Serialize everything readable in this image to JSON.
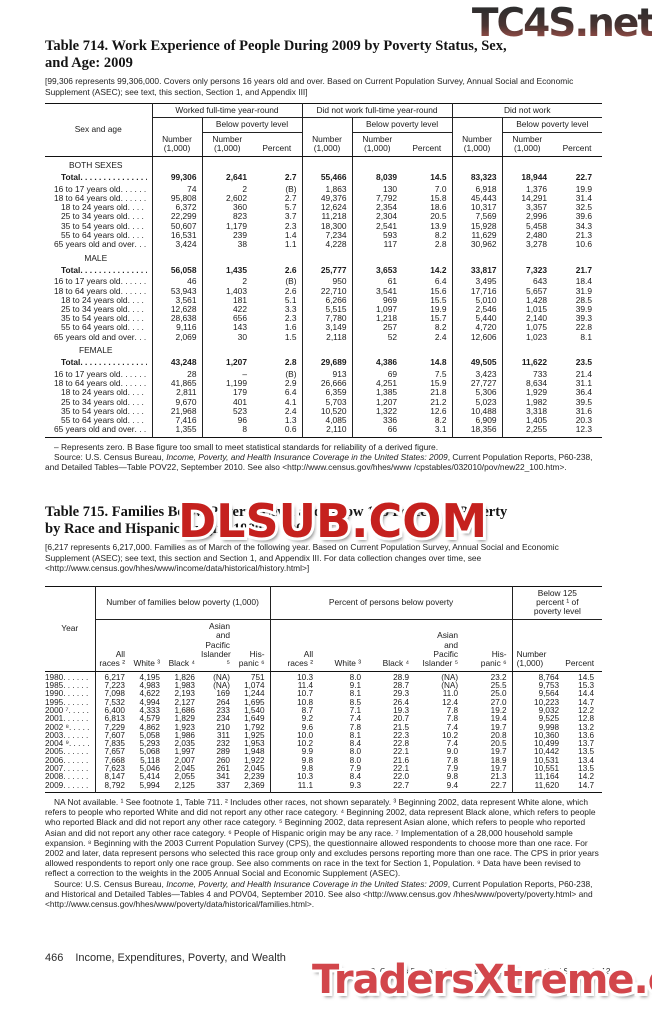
{
  "watermarks": {
    "top": "TC4S.net",
    "middle": "DLSUB.COM",
    "bottom": "TradersXtreme.com"
  },
  "table714": {
    "title": "Table 714. Work Experience of People During 2009 by Poverty Status, Sex,\nand Age: 2009",
    "bracket_note": "[99,306 represents 99,306,000. Covers only persons 16 years old and over. Based on Current Population Survey, Annual Social and Economic Supplement (ASEC); see text, this section, Section 1, and Appendix III]",
    "stub_header": "Sex and age",
    "groups": [
      "Worked full-time year-round",
      "Did not work full-time year-round",
      "Did not work"
    ],
    "below_poverty_label": "Below poverty level",
    "number_header": "Number\n(1,000)",
    "percent_header": "Percent",
    "sections": [
      {
        "label": "BOTH SEXES",
        "rows": [
          {
            "label": "Total",
            "bold": true,
            "indent": 0,
            "values": [
              "99,306",
              "2,641",
              "2.7",
              "55,466",
              "8,039",
              "14.5",
              "83,323",
              "18,944",
              "22.7"
            ]
          },
          {
            "label": "16 to 17 years old",
            "indent": 1,
            "values": [
              "74",
              "2",
              "(B)",
              "1,863",
              "130",
              "7.0",
              "6,918",
              "1,376",
              "19.9"
            ]
          },
          {
            "label": "18 to 64 years old",
            "indent": 1,
            "values": [
              "95,808",
              "2,602",
              "2.7",
              "49,376",
              "7,792",
              "15.8",
              "45,443",
              "14,291",
              "31.4"
            ]
          },
          {
            "label": "18 to 24 years old",
            "indent": 2,
            "values": [
              "6,372",
              "360",
              "5.7",
              "12,624",
              "2,354",
              "18.6",
              "10,317",
              "3,357",
              "32.5"
            ]
          },
          {
            "label": "25 to 34 years old",
            "indent": 2,
            "values": [
              "22,299",
              "823",
              "3.7",
              "11,218",
              "2,304",
              "20.5",
              "7,569",
              "2,996",
              "39.6"
            ]
          },
          {
            "label": "35 to 54 years old",
            "indent": 2,
            "values": [
              "50,607",
              "1,179",
              "2.3",
              "18,300",
              "2,541",
              "13.9",
              "15,928",
              "5,458",
              "34.3"
            ]
          },
          {
            "label": "55 to 64 years old",
            "indent": 2,
            "values": [
              "16,531",
              "239",
              "1.4",
              "7,234",
              "593",
              "8.2",
              "11,629",
              "2,480",
              "21.3"
            ]
          },
          {
            "label": "65 years old and over",
            "indent": 1,
            "values": [
              "3,424",
              "38",
              "1.1",
              "4,228",
              "117",
              "2.8",
              "30,962",
              "3,278",
              "10.6"
            ]
          }
        ]
      },
      {
        "label": "MALE",
        "rows": [
          {
            "label": "Total",
            "bold": true,
            "indent": 0,
            "values": [
              "56,058",
              "1,435",
              "2.6",
              "25,777",
              "3,653",
              "14.2",
              "33,817",
              "7,323",
              "21.7"
            ]
          },
          {
            "label": "16 to 17 years old",
            "indent": 1,
            "values": [
              "46",
              "2",
              "(B)",
              "950",
              "61",
              "6.4",
              "3,495",
              "643",
              "18.4"
            ]
          },
          {
            "label": "18 to 64 years old",
            "indent": 1,
            "values": [
              "53,943",
              "1,403",
              "2.6",
              "22,710",
              "3,541",
              "15.6",
              "17,716",
              "5,657",
              "31.9"
            ]
          },
          {
            "label": "18 to 24 years old",
            "indent": 2,
            "values": [
              "3,561",
              "181",
              "5.1",
              "6,266",
              "969",
              "15.5",
              "5,010",
              "1,428",
              "28.5"
            ]
          },
          {
            "label": "25 to 34 years old",
            "indent": 2,
            "values": [
              "12,628",
              "422",
              "3.3",
              "5,515",
              "1,097",
              "19.9",
              "2,546",
              "1,015",
              "39.9"
            ]
          },
          {
            "label": "35 to 54 years old",
            "indent": 2,
            "values": [
              "28,638",
              "656",
              "2.3",
              "7,780",
              "1,218",
              "15.7",
              "5,440",
              "2,140",
              "39.3"
            ]
          },
          {
            "label": "55 to 64 years old",
            "indent": 2,
            "values": [
              "9,116",
              "143",
              "1.6",
              "3,149",
              "257",
              "8.2",
              "4,720",
              "1,075",
              "22.8"
            ]
          },
          {
            "label": "65 years old and over",
            "indent": 1,
            "values": [
              "2,069",
              "30",
              "1.5",
              "2,118",
              "52",
              "2.4",
              "12,606",
              "1,023",
              "8.1"
            ]
          }
        ]
      },
      {
        "label": "FEMALE",
        "rows": [
          {
            "label": "Total",
            "bold": true,
            "indent": 0,
            "values": [
              "43,248",
              "1,207",
              "2.8",
              "29,689",
              "4,386",
              "14.8",
              "49,505",
              "11,622",
              "23.5"
            ]
          },
          {
            "label": "16 to 17 years old",
            "indent": 1,
            "values": [
              "28",
              "–",
              "(B)",
              "913",
              "69",
              "7.5",
              "3,423",
              "733",
              "21.4"
            ]
          },
          {
            "label": "18 to 64 years old",
            "indent": 1,
            "values": [
              "41,865",
              "1,199",
              "2.9",
              "26,666",
              "4,251",
              "15.9",
              "27,727",
              "8,634",
              "31.1"
            ]
          },
          {
            "label": "18 to 24 years old",
            "indent": 2,
            "values": [
              "2,811",
              "179",
              "6.4",
              "6,359",
              "1,385",
              "21.8",
              "5,306",
              "1,929",
              "36.4"
            ]
          },
          {
            "label": "25 to 34 years old",
            "indent": 2,
            "values": [
              "9,670",
              "401",
              "4.1",
              "5,703",
              "1,207",
              "21.2",
              "5,023",
              "1,982",
              "39.5"
            ]
          },
          {
            "label": "35 to 54 years old",
            "indent": 2,
            "values": [
              "21,968",
              "523",
              "2.4",
              "10,520",
              "1,322",
              "12.6",
              "10,488",
              "3,318",
              "31.6"
            ]
          },
          {
            "label": "55 to 64 years old",
            "indent": 2,
            "values": [
              "7,416",
              "96",
              "1.3",
              "4,085",
              "336",
              "8.2",
              "6,909",
              "1,405",
              "20.3"
            ]
          },
          {
            "label": "65 years old and over",
            "indent": 1,
            "values": [
              "1,355",
              "8",
              "0.6",
              "2,110",
              "66",
              "3.1",
              "18,356",
              "2,255",
              "12.3"
            ]
          }
        ]
      }
    ],
    "footnote": "– Represents zero. B Base figure too small to meet statistical standards for reliability of a derived figure.",
    "source_prefix": "Source: U.S. Census Bureau, ",
    "source_italic": "Income, Poverty, and Health Insurance Coverage in the United States: 2009",
    "source_suffix": ", Current Population Reports, P60-238, and Detailed Tables—Table POV22, September 2010. See also <http://www.census.gov/hhes/www /cpstables/032010/pov/new22_100.htm>."
  },
  "table715": {
    "title": "Table 715. Families Below Poverty Level and Below 125 Percent of Poverty\nby Race and Hispanic Origin: 1980 to 2009",
    "bracket_note": "[6,217 represents 6,217,000. Families as of March of the following year. Based on Current Population Survey, Annual Social and Economic Supplement (ASEC); see text, this section and Section 1, and Appendix III. For data collection changes over time, see <http://www.census.gov/hhes/www/income/data/historical/history.html>]",
    "stub_header": "Year",
    "groups": [
      "Number of families below poverty (1,000)",
      "Percent of persons below poverty",
      "Below 125\npercent ¹ of\npoverty level"
    ],
    "race_headers": [
      "All\nraces ²",
      "White ³",
      "Black ⁴",
      "Asian\nand\nPacific\nIslander ⁵",
      "His-\npanic ⁶"
    ],
    "number_header": "Number\n(1,000)",
    "percent_header": "Percent",
    "rows": [
      {
        "year": "1980",
        "values": [
          "6,217",
          "4,195",
          "1,826",
          "(NA)",
          "751",
          "10.3",
          "8.0",
          "28.9",
          "(NA)",
          "23.2",
          "8,764",
          "14.5"
        ]
      },
      {
        "year": "1985",
        "values": [
          "7,223",
          "4,983",
          "1,983",
          "(NA)",
          "1,074",
          "11.4",
          "9.1",
          "28.7",
          "(NA)",
          "25.5",
          "9,753",
          "15.3"
        ]
      },
      {
        "year": "1990",
        "values": [
          "7,098",
          "4,622",
          "2,193",
          "169",
          "1,244",
          "10.7",
          "8.1",
          "29.3",
          "11.0",
          "25.0",
          "9,564",
          "14.4"
        ]
      },
      {
        "year": "1995",
        "values": [
          "7,532",
          "4,994",
          "2,127",
          "264",
          "1,695",
          "10.8",
          "8.5",
          "26.4",
          "12.4",
          "27.0",
          "10,223",
          "14.7"
        ]
      },
      {
        "year": "2000 ⁷",
        "values": [
          "6,400",
          "4,333",
          "1,686",
          "233",
          "1,540",
          "8.7",
          "7.1",
          "19.3",
          "7.8",
          "19.2",
          "9,032",
          "12.2"
        ]
      },
      {
        "year": "2001",
        "values": [
          "6,813",
          "4,579",
          "1,829",
          "234",
          "1,649",
          "9.2",
          "7.4",
          "20.7",
          "7.8",
          "19.4",
          "9,525",
          "12.8"
        ]
      },
      {
        "year": "2002 ⁸",
        "values": [
          "7,229",
          "4,862",
          "1,923",
          "210",
          "1,792",
          "9.6",
          "7.8",
          "21.5",
          "7.4",
          "19.7",
          "9,998",
          "13.2"
        ]
      },
      {
        "year": "2003",
        "values": [
          "7,607",
          "5,058",
          "1,986",
          "311",
          "1,925",
          "10.0",
          "8.1",
          "22.3",
          "10.2",
          "20.8",
          "10,360",
          "13.6"
        ]
      },
      {
        "year": "2004 ⁹",
        "values": [
          "7,835",
          "5,293",
          "2,035",
          "232",
          "1,953",
          "10.2",
          "8.4",
          "22.8",
          "7.4",
          "20.5",
          "10,499",
          "13.7"
        ]
      },
      {
        "year": "2005",
        "values": [
          "7,657",
          "5,068",
          "1,997",
          "289",
          "1,948",
          "9.9",
          "8.0",
          "22.1",
          "9.0",
          "19.7",
          "10,442",
          "13.5"
        ]
      },
      {
        "year": "2006",
        "values": [
          "7,668",
          "5,118",
          "2,007",
          "260",
          "1,922",
          "9.8",
          "8.0",
          "21.6",
          "7.8",
          "18.9",
          "10,531",
          "13.4"
        ]
      },
      {
        "year": "2007",
        "values": [
          "7,623",
          "5,046",
          "2,045",
          "261",
          "2,045",
          "9.8",
          "7.9",
          "22.1",
          "7.9",
          "19.7",
          "10,551",
          "13.5"
        ]
      },
      {
        "year": "2008",
        "values": [
          "8,147",
          "5,414",
          "2,055",
          "341",
          "2,239",
          "10.3",
          "8.4",
          "22.0",
          "9.8",
          "21.3",
          "11,164",
          "14.2"
        ]
      },
      {
        "year": "2009",
        "values": [
          "8,792",
          "5,994",
          "2,125",
          "337",
          "2,369",
          "11.1",
          "9.3",
          "22.7",
          "9.4",
          "22.7",
          "11,620",
          "14.7"
        ]
      }
    ],
    "footnotes": "NA Not available. ¹ See footnote 1, Table 711. ² Includes other races, not shown separately. ³ Beginning 2002, data represent White alone, which refers to people who reported White and did not report any other race category. ⁴ Beginning 2002, data represent Black alone, which refers to people who reported Black and did not report any other race category. ⁵ Beginning 2002, data represent Asian alone, which refers to people who reported Asian and did not report any other race category. ⁶ People of Hispanic origin may be any race. ⁷ Implementation of a 28,000 household sample expansion. ⁸ Beginning with the 2003 Current Population Survey (CPS), the questionnaire allowed respondents to choose more than one race. For 2002 and later, data represent persons who selected this race group only and excludes persons reporting more than one race. The CPS in prior years allowed respondents to report only one race group. See also comments on race in the text for Section 1, Population. ⁹ Data have been revised to reflect a correction to the weights in the 2005 Annual Social and Economic Supplement (ASEC).",
    "source_prefix": "Source: U.S. Census Bureau, ",
    "source_italic": "Income, Poverty, and Health Insurance Coverage in the United States: 2009",
    "source_suffix": ", Current Population Reports, P60-238, and Historical and Detailed Tables—Tables 4 and POV04, September 2010. See also <http://www.census.gov /hhes/www/poverty/poverty.html> and <http://www.census.gov/hhes/www/poverty/data/historical/families.html>."
  },
  "footer": {
    "page_number": "466",
    "section_title": "Income, Expenditures, Poverty, and Wealth",
    "source_prefix": "U.S. Census Bureau, ",
    "source_italic": "Statistical Abstract of the United States: 2012"
  }
}
